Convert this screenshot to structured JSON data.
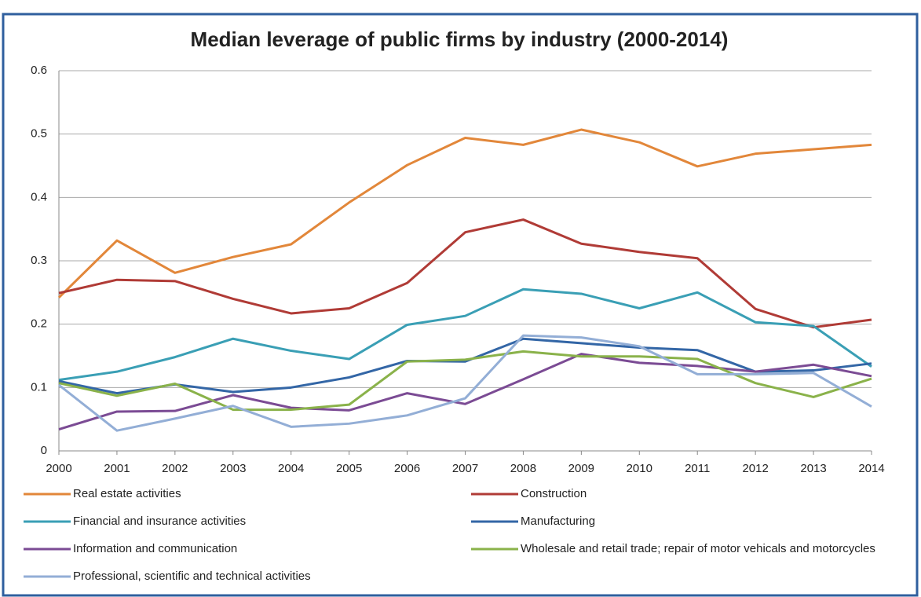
{
  "chart_data": {
    "type": "line",
    "title": "Median leverage of public firms by industry (2000-2014)",
    "categories": [
      "2000",
      "2001",
      "2002",
      "2003",
      "2004",
      "2005",
      "2006",
      "2007",
      "2008",
      "2009",
      "2010",
      "2011",
      "2012",
      "2013",
      "2014"
    ],
    "ylim": [
      0,
      0.6
    ],
    "yticks": [
      0,
      0.1,
      0.2,
      0.3,
      0.4,
      0.5,
      0.6
    ],
    "grid": true,
    "series": [
      {
        "name": "Real estate activities",
        "color": "#e2873a",
        "values": [
          0.242,
          0.332,
          0.281,
          0.306,
          0.326,
          0.392,
          0.451,
          0.494,
          0.483,
          0.507,
          0.487,
          0.449,
          0.469,
          0.476,
          0.483
        ]
      },
      {
        "name": "Construction",
        "color": "#b03b36",
        "values": [
          0.249,
          0.27,
          0.268,
          0.24,
          0.217,
          0.225,
          0.265,
          0.345,
          0.365,
          0.327,
          0.314,
          0.304,
          0.224,
          0.195,
          0.207
        ]
      },
      {
        "name": "Financial and insurance activities",
        "color": "#3a9fb5",
        "values": [
          0.112,
          0.125,
          0.148,
          0.177,
          0.158,
          0.145,
          0.199,
          0.213,
          0.255,
          0.248,
          0.225,
          0.25,
          0.203,
          0.197,
          0.133
        ]
      },
      {
        "name": "Manufacturing",
        "color": "#3366a6",
        "values": [
          0.11,
          0.091,
          0.105,
          0.093,
          0.1,
          0.116,
          0.142,
          0.141,
          0.177,
          0.17,
          0.163,
          0.159,
          0.125,
          0.127,
          0.138
        ]
      },
      {
        "name": "Information and communication",
        "color": "#7b4b94",
        "values": [
          0.034,
          0.062,
          0.063,
          0.088,
          0.068,
          0.064,
          0.091,
          0.074,
          0.113,
          0.153,
          0.139,
          0.134,
          0.125,
          0.136,
          0.118
        ]
      },
      {
        "name": "Wholesale and retail trade; repair of motor vehicals and motorcycles",
        "color": "#8ab24a",
        "values": [
          0.107,
          0.087,
          0.106,
          0.065,
          0.065,
          0.073,
          0.141,
          0.144,
          0.157,
          0.149,
          0.149,
          0.145,
          0.107,
          0.085,
          0.114
        ]
      },
      {
        "name": "Professional, scientific and technical activities",
        "color": "#93aed6",
        "values": [
          0.104,
          0.032,
          0.051,
          0.071,
          0.038,
          0.043,
          0.056,
          0.083,
          0.182,
          0.179,
          0.165,
          0.121,
          0.121,
          0.123,
          0.07
        ]
      }
    ]
  }
}
